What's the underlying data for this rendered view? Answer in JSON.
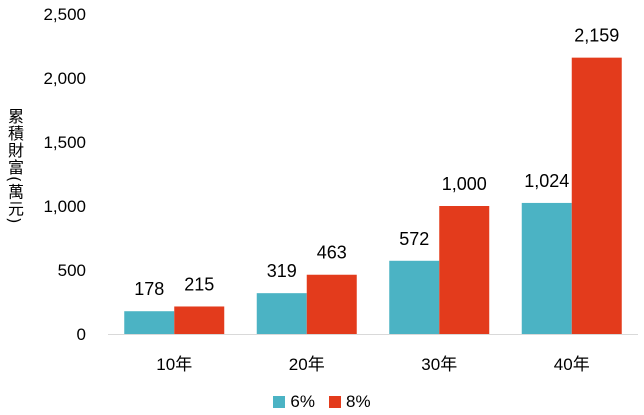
{
  "chart_data": {
    "type": "bar",
    "categories": [
      "10年",
      "20年",
      "30年",
      "40年"
    ],
    "series": [
      {
        "name": "6%",
        "values": [
          178,
          319,
          572,
          1024
        ],
        "labels": [
          "178",
          "319",
          "572",
          "1,024"
        ],
        "color": "#4bb3c4"
      },
      {
        "name": "8%",
        "values": [
          215,
          463,
          1000,
          2159
        ],
        "labels": [
          "215",
          "463",
          "1,000",
          "2,159"
        ],
        "color": "#e33b1c"
      }
    ],
    "ylabel": "累積財富(萬元)",
    "ylim": [
      0,
      2500
    ],
    "yticks": [
      0,
      500,
      1000,
      1500,
      2000,
      2500
    ],
    "ytick_labels": [
      "0",
      "500",
      "1,000",
      "1,500",
      "2,000",
      "2,500"
    ],
    "grid": false,
    "legend_position": "bottom"
  }
}
